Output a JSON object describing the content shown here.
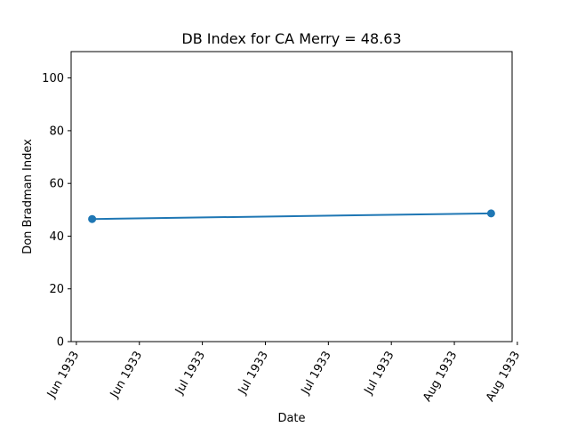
{
  "chart_data": {
    "type": "line",
    "title": "DB Index for CA Merry = 48.63",
    "xlabel": "Date",
    "ylabel": "Don Bradman Index",
    "ylim": [
      0,
      110
    ],
    "xlim": [
      "1933-05-30",
      "1933-08-22"
    ],
    "yticks": [
      0,
      20,
      40,
      60,
      80,
      100
    ],
    "xticks": [
      {
        "date": "1933-05-31",
        "label": "Jun 1933"
      },
      {
        "date": "1933-06-12",
        "label": "Jun 1933"
      },
      {
        "date": "1933-06-24",
        "label": "Jul 1933"
      },
      {
        "date": "1933-07-06",
        "label": "Jul 1933"
      },
      {
        "date": "1933-07-18",
        "label": "Jul 1933"
      },
      {
        "date": "1933-07-30",
        "label": "Jul 1933"
      },
      {
        "date": "1933-08-11",
        "label": "Aug 1933"
      },
      {
        "date": "1933-08-23",
        "label": "Aug 1933"
      }
    ],
    "grid": false,
    "series": [
      {
        "color": "#1f77b4",
        "x": [
          "1933-06-03",
          "1933-08-18"
        ],
        "y": [
          46.5,
          48.63
        ]
      }
    ]
  }
}
